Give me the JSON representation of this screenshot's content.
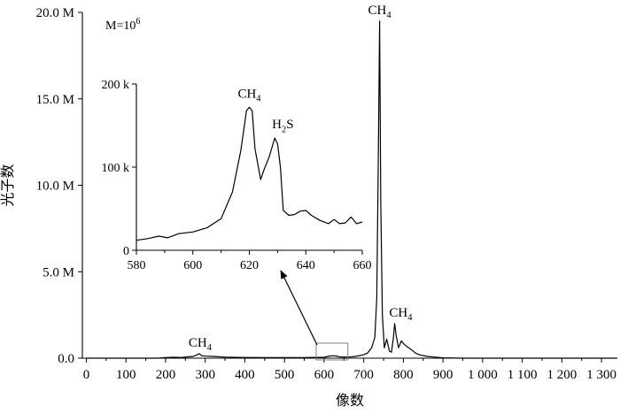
{
  "chart_data": [
    {
      "type": "line",
      "title": "",
      "xlabel": "像数",
      "ylabel": "光子数",
      "xlim": [
        -10,
        1340
      ],
      "ylim": [
        0,
        20000000
      ],
      "x_ticks": [
        0,
        100,
        200,
        300,
        400,
        500,
        600,
        700,
        800,
        900,
        1000,
        1100,
        1200,
        1300
      ],
      "x_tick_labels": [
        "0",
        "100",
        "200",
        "300",
        "400",
        "500",
        "600",
        "700",
        "800",
        "900",
        "1 000",
        "1 100",
        "1 200",
        "1 300"
      ],
      "y_ticks": [
        0,
        5000000,
        10000000,
        15000000,
        20000000
      ],
      "y_tick_labels": [
        "0.0",
        "5.0 M",
        "10.0 M",
        "15.0 M",
        "20.0 M"
      ],
      "scale_note": "M=10",
      "scale_note_exponent": "6",
      "series": [
        {
          "x": [
            0,
            100,
            180,
            200,
            220,
            240,
            260,
            270,
            280,
            285,
            290,
            300,
            320,
            350,
            400,
            450,
            500,
            550,
            600,
            610,
            620,
            630,
            640,
            660,
            680,
            700,
            710,
            720,
            728,
            733,
            737,
            740,
            743,
            747,
            752,
            758,
            765,
            770,
            775,
            778,
            782,
            788,
            795,
            800,
            810,
            820,
            830,
            840,
            860,
            880,
            900,
            950,
            1000,
            1100,
            1200,
            1300,
            1340
          ],
          "y": [
            0,
            0,
            0,
            30000,
            50000,
            40000,
            80000,
            100000,
            200000,
            260000,
            150000,
            120000,
            100000,
            60000,
            40000,
            30000,
            30000,
            30000,
            50000,
            100000,
            140000,
            130000,
            70000,
            60000,
            100000,
            200000,
            300000,
            600000,
            1200000,
            3500000,
            12000000,
            19500000,
            9000000,
            2500000,
            600000,
            1100000,
            400000,
            350000,
            1200000,
            2000000,
            1300000,
            600000,
            1000000,
            850000,
            650000,
            500000,
            300000,
            200000,
            100000,
            60000,
            20000,
            0,
            0,
            0,
            0,
            0,
            0
          ]
        }
      ],
      "annotations": [
        {
          "label": "CH",
          "subscript": "4",
          "x": 287,
          "y": 260000
        },
        {
          "label": "CH",
          "subscript": "4",
          "x": 740,
          "y": 19500000
        },
        {
          "label": "CH",
          "subscript": "4",
          "x": 780,
          "y": 2000000
        }
      ]
    },
    {
      "type": "line",
      "title": "",
      "xlabel": "",
      "ylabel": "",
      "xlim": [
        580,
        660
      ],
      "ylim": [
        0,
        200000
      ],
      "x_ticks": [
        580,
        600,
        620,
        640,
        660
      ],
      "x_tick_labels": [
        "580",
        "600",
        "620",
        "640",
        "660"
      ],
      "y_ticks": [
        0,
        100000,
        200000
      ],
      "y_tick_labels": [
        "0",
        "100 k",
        "200 k"
      ],
      "series": [
        {
          "x": [
            580,
            584,
            588,
            591,
            595,
            600,
            605,
            610,
            614,
            617,
            619,
            620,
            621,
            622,
            624,
            625,
            627,
            629,
            630,
            631,
            632,
            634,
            636,
            638,
            640,
            642,
            645,
            648,
            650,
            652,
            654,
            656,
            658,
            660
          ],
          "y": [
            12000,
            14000,
            17000,
            15000,
            20000,
            22000,
            27000,
            38000,
            70000,
            120000,
            168000,
            172000,
            168000,
            122000,
            85000,
            95000,
            112000,
            135000,
            128000,
            100000,
            48000,
            42000,
            43000,
            47000,
            48000,
            42000,
            36000,
            32000,
            37000,
            32000,
            33000,
            40000,
            32000,
            34000
          ]
        }
      ],
      "annotations": [
        {
          "label": "CH",
          "subscript": "4",
          "x": 620,
          "y": 172000
        },
        {
          "label": "H",
          "subscript": "2",
          "label_rest": "S",
          "x": 630,
          "y": 135000
        }
      ]
    }
  ]
}
